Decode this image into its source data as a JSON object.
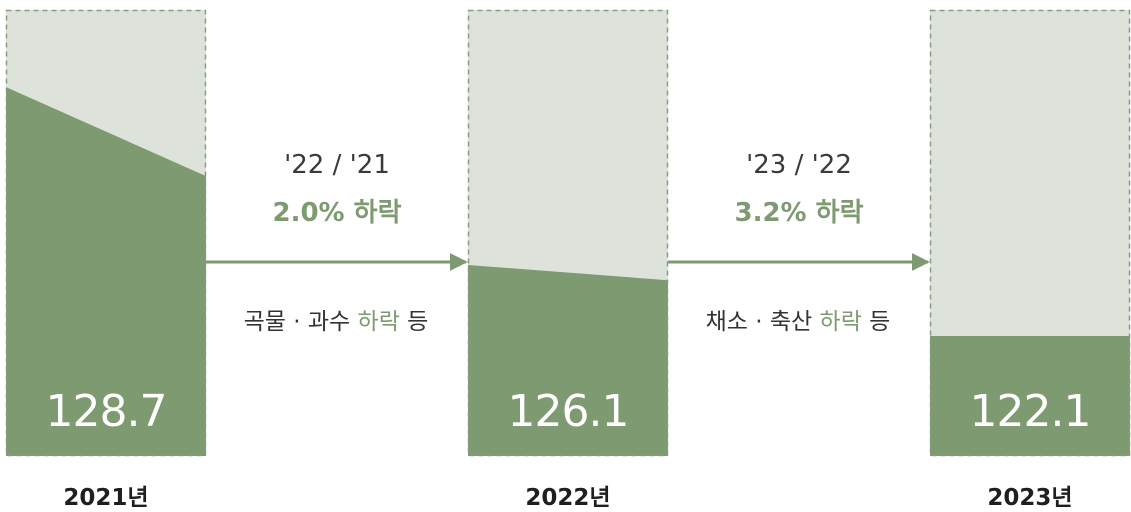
{
  "chart_data": {
    "type": "bar",
    "categories": [
      "2021년",
      "2022년",
      "2023년"
    ],
    "values": [
      128.7,
      126.1,
      122.1
    ],
    "value_labels": [
      "128.7",
      "126.1",
      "122.1"
    ],
    "transitions": [
      {
        "ratio": "'22 / '21",
        "change": "2.0% 하락",
        "cause_prefix": "곡물 · 과수 ",
        "cause_highlight": "하락",
        "cause_suffix": " 등"
      },
      {
        "ratio": "'23 / '22",
        "change": "3.2% 하락",
        "cause_prefix": "채소 · 축산 ",
        "cause_highlight": "하락",
        "cause_suffix": " 등"
      }
    ],
    "title": "",
    "xlabel": "",
    "ylabel": ""
  },
  "colors": {
    "bar_fill": "#7d9a70",
    "bar_background": "#dde3db",
    "frame_border": "#8a9b84",
    "arrow": "#7d9a70",
    "accent_text": "#7d9a70"
  }
}
